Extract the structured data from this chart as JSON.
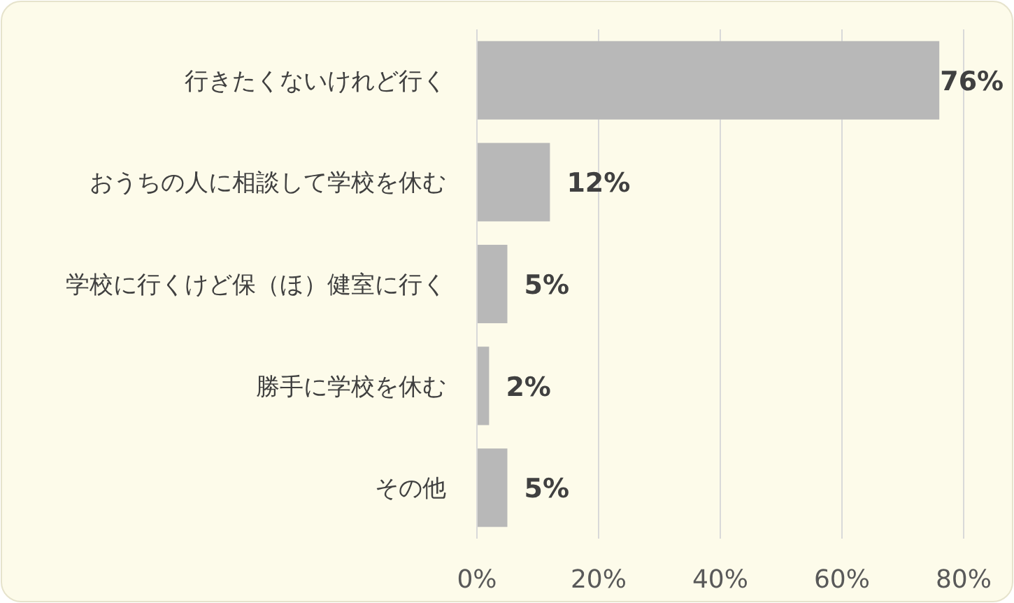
{
  "chart_data": {
    "type": "bar",
    "orientation": "horizontal",
    "categories": [
      "行きたくないけれど行く",
      "おうちの人に相談して学校を休む",
      "学校に行くけど保（ほ）健室に行く",
      "勝手に学校を休む",
      "その他"
    ],
    "values": [
      76,
      12,
      5,
      2,
      5
    ],
    "value_labels": [
      "76%",
      "12%",
      "5%",
      "2%",
      "5%"
    ],
    "color": "#b8b8b8",
    "xlim": [
      0,
      80
    ],
    "xticks": [
      {
        "value": 0,
        "label": "0%"
      },
      {
        "value": 20,
        "label": "20%"
      },
      {
        "value": 40,
        "label": "40%"
      },
      {
        "value": 60,
        "label": "60%"
      },
      {
        "value": 80,
        "label": "80%"
      }
    ],
    "grid": "x"
  }
}
